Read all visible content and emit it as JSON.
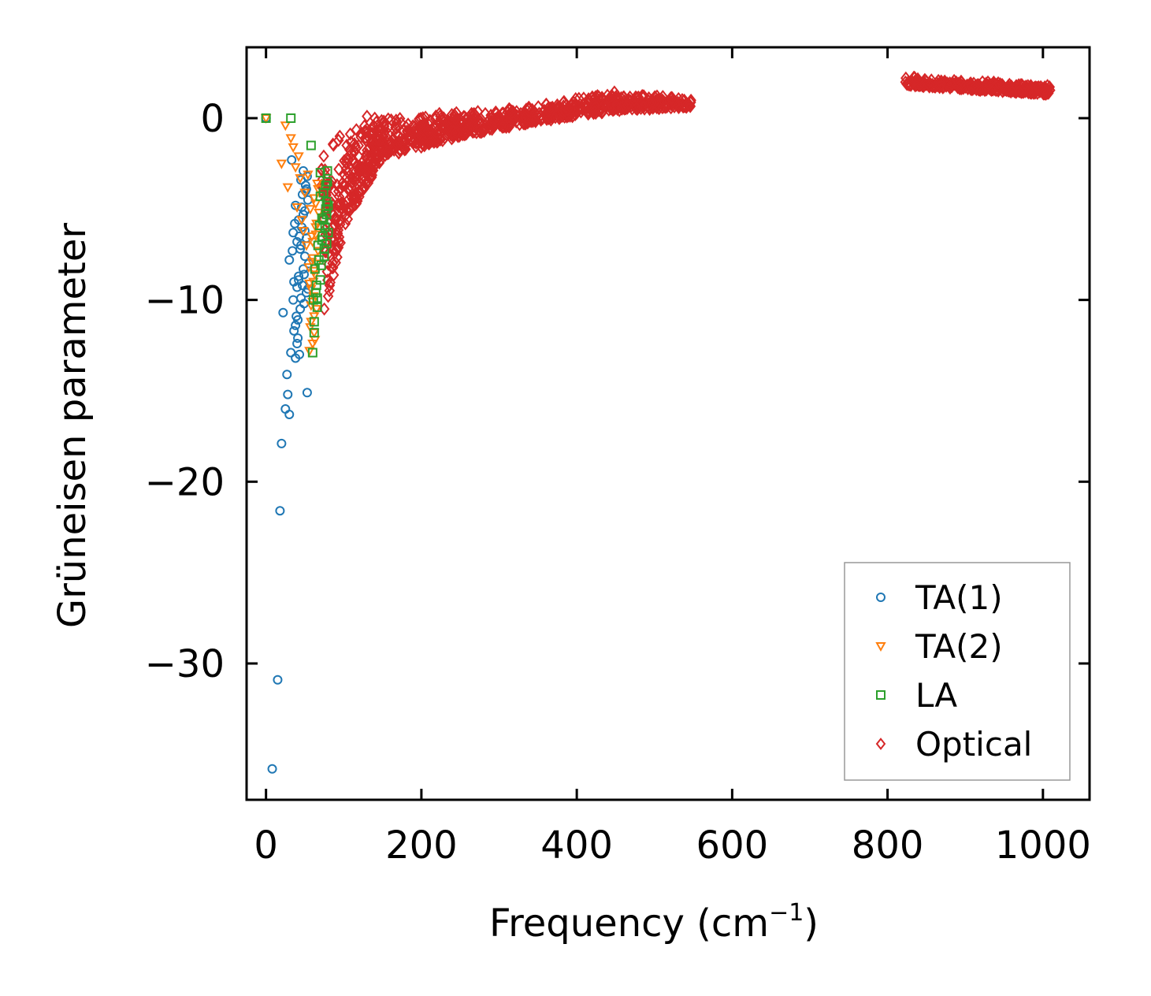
{
  "chart_data": {
    "type": "scatter",
    "title": "",
    "xlabel": "Frequency (cm",
    "xlabel_unit_exp": "−1",
    "xlabel_close": ")",
    "ylabel": "Grüneisen parameter",
    "xlim": [
      -25,
      1060
    ],
    "ylim": [
      -37.5,
      3.9
    ],
    "xticks": [
      0,
      200,
      400,
      600,
      800,
      1000
    ],
    "xtick_labels": [
      "0",
      "200",
      "400",
      "600",
      "800",
      "1000"
    ],
    "yticks": [
      0,
      -10,
      -20,
      -30
    ],
    "ytick_labels": [
      "0",
      "−10",
      "−20",
      "−30"
    ],
    "legend_position": "lower-right",
    "grid": false,
    "series": [
      {
        "name": "TA(1)",
        "marker": "circle",
        "color": "#1f77b4",
        "x": [
          0,
          8,
          15,
          18,
          20,
          22,
          25,
          27,
          28,
          30,
          30,
          32,
          33,
          35,
          35,
          36,
          38,
          38,
          40,
          40,
          41,
          42,
          42,
          43,
          44,
          45,
          45,
          46,
          47,
          48,
          48,
          49,
          50,
          50,
          51,
          52,
          52,
          53,
          54,
          55,
          36,
          40,
          44,
          48,
          52,
          34,
          38,
          42,
          46,
          50,
          54,
          37,
          41,
          45,
          49,
          53,
          39,
          43,
          47,
          51
        ],
        "y": [
          0,
          -35.8,
          -30.9,
          -21.6,
          -17.9,
          -10.7,
          -16.0,
          -14.1,
          -15.2,
          -16.3,
          -7.8,
          -12.9,
          -2.3,
          -10.0,
          -6.3,
          -11.7,
          -4.8,
          -13.2,
          -12.4,
          -9.3,
          -11.1,
          -8.7,
          -5.6,
          -13.0,
          -7.2,
          -3.4,
          -9.9,
          -6.0,
          -4.2,
          -8.3,
          -2.9,
          -10.2,
          -5.1,
          -7.6,
          -3.7,
          -9.6,
          -6.6,
          -15.1,
          -4.5,
          -8.0,
          -9.0,
          -6.8,
          -10.5,
          -5.3,
          -3.9,
          -7.3,
          -11.4,
          -8.9,
          -4.9,
          -6.2,
          -9.4,
          -5.8,
          -12.1,
          -7.0,
          -8.6,
          -3.2,
          -10.9,
          -6.5,
          -9.2,
          -4.0
        ]
      },
      {
        "name": "TA(2)",
        "marker": "triangle-down",
        "color": "#ff7f0e",
        "x": [
          0,
          20,
          25,
          28,
          32,
          35,
          38,
          40,
          42,
          44,
          46,
          48,
          50,
          52,
          54,
          55,
          56,
          57,
          58,
          58,
          59,
          60,
          60,
          61,
          62,
          62,
          63,
          64,
          65,
          66,
          67,
          68,
          56,
          58,
          60,
          62,
          64,
          66,
          57,
          59,
          61,
          63,
          65,
          67,
          60,
          62,
          64
        ],
        "y": [
          0,
          -2.5,
          -0.4,
          -3.8,
          -1.1,
          -1.6,
          -2.7,
          -4.9,
          -2.1,
          -3.3,
          -5.6,
          -6.2,
          -4.1,
          -7.0,
          -3.1,
          -8.2,
          -9.1,
          -5.0,
          -10.3,
          -11.2,
          -6.5,
          -12.4,
          -7.7,
          -9.8,
          -4.4,
          -11.8,
          -8.6,
          -6.0,
          -10.5,
          -3.6,
          -7.3,
          -5.2,
          -12.8,
          -9.4,
          -6.8,
          -10.9,
          -4.7,
          -8.0,
          -11.5,
          -7.9,
          -9.0,
          -12.2,
          -5.8,
          -3.9,
          -10.1,
          -8.4,
          -6.4
        ]
      },
      {
        "name": "LA",
        "marker": "square",
        "color": "#2ca02c",
        "x": [
          0,
          32,
          58,
          60,
          62,
          64,
          66,
          68,
          70,
          70,
          72,
          72,
          74,
          75,
          76,
          77,
          78,
          78,
          79,
          80,
          80,
          61,
          63,
          65,
          67,
          69,
          71,
          73,
          75,
          77,
          79,
          62,
          66,
          70,
          74,
          78
        ],
        "y": [
          0,
          0,
          -1.5,
          -12.9,
          -11.2,
          -9.6,
          -10.4,
          -7.8,
          -3.0,
          -8.9,
          -5.5,
          -6.7,
          -4.1,
          -7.2,
          -6.0,
          -3.7,
          -4.6,
          -5.3,
          -2.9,
          -6.3,
          -4.8,
          -10.0,
          -8.3,
          -9.2,
          -7.0,
          -5.9,
          -8.1,
          -6.5,
          -7.6,
          -5.0,
          -3.5,
          -11.8,
          -9.9,
          -4.3,
          -5.6,
          -6.9
        ]
      },
      {
        "name": "Optical",
        "marker": "diamond",
        "color": "#d62728",
        "x": [],
        "y": [],
        "bands": [
          {
            "x0": 70,
            "x1": 80,
            "ylo0": -2.5,
            "ylo1": -10.2,
            "yhi0": -2.0,
            "yhi1": -1.2,
            "count": 30
          },
          {
            "x0": 80,
            "x1": 100,
            "ylo0": -10.2,
            "ylo1": -6.0,
            "yhi0": -1.2,
            "yhi1": -0.8,
            "count": 60
          },
          {
            "x0": 100,
            "x1": 150,
            "ylo0": -6.0,
            "ylo1": -2.2,
            "yhi0": -0.8,
            "yhi1": 0.2,
            "count": 170
          },
          {
            "x0": 150,
            "x1": 250,
            "ylo0": -2.2,
            "ylo1": -1.0,
            "yhi0": 0.2,
            "yhi1": 0.3,
            "count": 220
          },
          {
            "x0": 250,
            "x1": 350,
            "ylo0": -1.0,
            "ylo1": -0.2,
            "yhi0": 0.3,
            "yhi1": 0.7,
            "count": 190
          },
          {
            "x0": 350,
            "x1": 450,
            "ylo0": -0.2,
            "ylo1": 0.4,
            "yhi0": 0.7,
            "yhi1": 1.5,
            "count": 180
          },
          {
            "x0": 450,
            "x1": 548,
            "ylo0": 0.4,
            "ylo1": 0.6,
            "yhi0": 1.5,
            "yhi1": 1.1,
            "count": 170
          },
          {
            "x0": 823,
            "x1": 1010,
            "ylo0": 1.8,
            "ylo1": 1.3,
            "yhi0": 2.3,
            "yhi1": 1.8,
            "count": 320
          }
        ],
        "outliers": {
          "x": [
            80,
            85,
            90,
            100,
            110,
            120,
            140,
            75,
            95,
            130,
            235,
            245
          ],
          "y": [
            -9.8,
            -6.0,
            -5.5,
            -4.7,
            -3.8,
            -4.0,
            0.0,
            -10.5,
            -1.0,
            0.1,
            -0.5,
            0.3
          ]
        }
      }
    ]
  }
}
